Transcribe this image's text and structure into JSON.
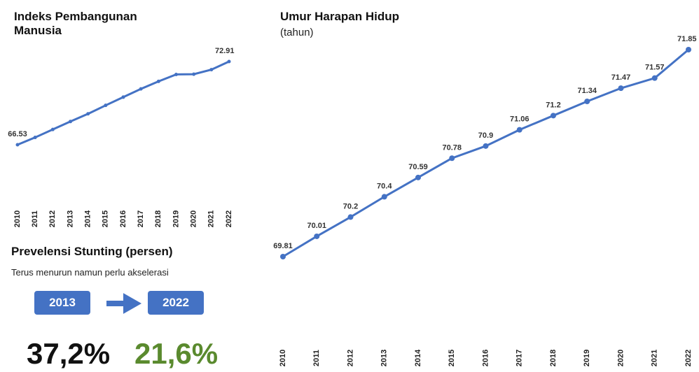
{
  "chart_data": [
    {
      "type": "line",
      "title": "Indeks Pembangunan Manusia",
      "categories": [
        "2010",
        "2011",
        "2012",
        "2013",
        "2014",
        "2015",
        "2016",
        "2017",
        "2018",
        "2019",
        "2020",
        "2021",
        "2022"
      ],
      "values": [
        66.53,
        67.09,
        67.7,
        68.31,
        68.9,
        69.55,
        70.18,
        70.81,
        71.39,
        71.92,
        71.94,
        72.29,
        72.91
      ],
      "value_labels": [
        "66.53",
        null,
        null,
        null,
        null,
        null,
        null,
        null,
        null,
        null,
        null,
        null,
        "72.91"
      ],
      "color": "#4472c4"
    },
    {
      "type": "line",
      "title": "Umur Harapan Hidup",
      "subtitle": "(tahun)",
      "categories": [
        "2010",
        "2011",
        "2012",
        "2013",
        "2014",
        "2015",
        "2016",
        "2017",
        "2018",
        "2019",
        "2020",
        "2021",
        "2022"
      ],
      "values": [
        69.81,
        70.01,
        70.2,
        70.4,
        70.59,
        70.78,
        70.9,
        71.06,
        71.2,
        71.34,
        71.47,
        71.57,
        71.85
      ],
      "value_labels": [
        "69.81",
        "70.01",
        "70.2",
        "70.4",
        "70.59",
        "70.78",
        "70.9",
        "71.06",
        "71.2",
        "71.34",
        "71.47",
        "71.57",
        "71.85"
      ],
      "color": "#4472c4"
    }
  ],
  "stunting": {
    "title": "Prevelensi Stunting (persen)",
    "subtitle": "Terus menurun namun perlu akselerasi",
    "year_from": "2013",
    "year_to": "2022",
    "value_from": "37,2%",
    "value_to": "21,6%"
  }
}
